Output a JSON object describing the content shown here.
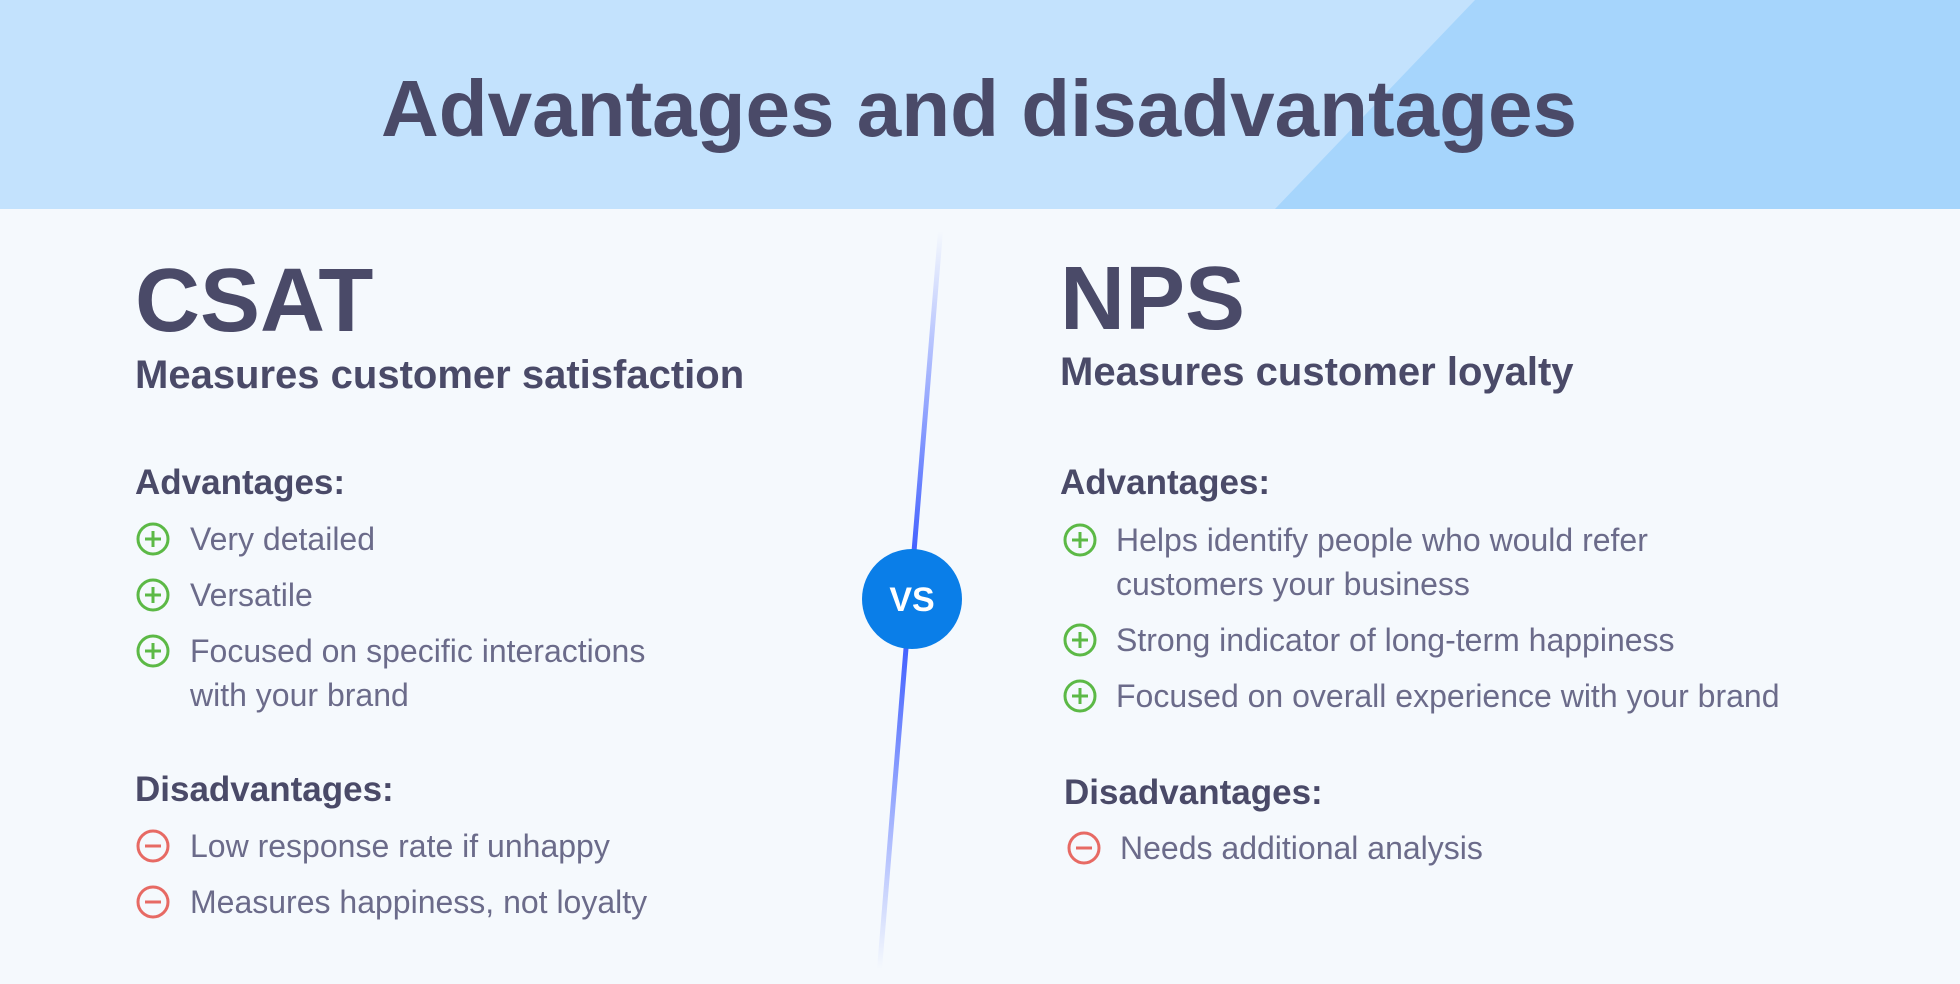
{
  "header": {
    "title": "Advantages and disadvantages"
  },
  "vs": "VS",
  "columns": [
    {
      "title": "CSAT",
      "subtitle": "Measures customer satisfaction",
      "advantages": {
        "heading": "Advantages:",
        "items": [
          [
            "Very detailed"
          ],
          [
            "Versatile"
          ],
          [
            "Focused on specific interactions",
            "with your brand"
          ]
        ]
      },
      "disadvantages": {
        "heading": "Disadvantages:",
        "items": [
          [
            "Low response rate if unhappy"
          ],
          [
            "Measures happiness, not loyalty"
          ]
        ]
      }
    },
    {
      "title": "NPS",
      "subtitle": "Measures customer loyalty",
      "advantages": {
        "heading": "Advantages:",
        "items": [
          [
            "Helps identify people who would refer",
            "customers your business"
          ],
          [
            "Strong indicator of long-term happiness"
          ],
          [
            "Focused on overall experience with your brand"
          ]
        ]
      },
      "disadvantages": {
        "heading": "Disadvantages:",
        "items": [
          [
            "Needs additional analysis"
          ]
        ]
      }
    }
  ]
}
